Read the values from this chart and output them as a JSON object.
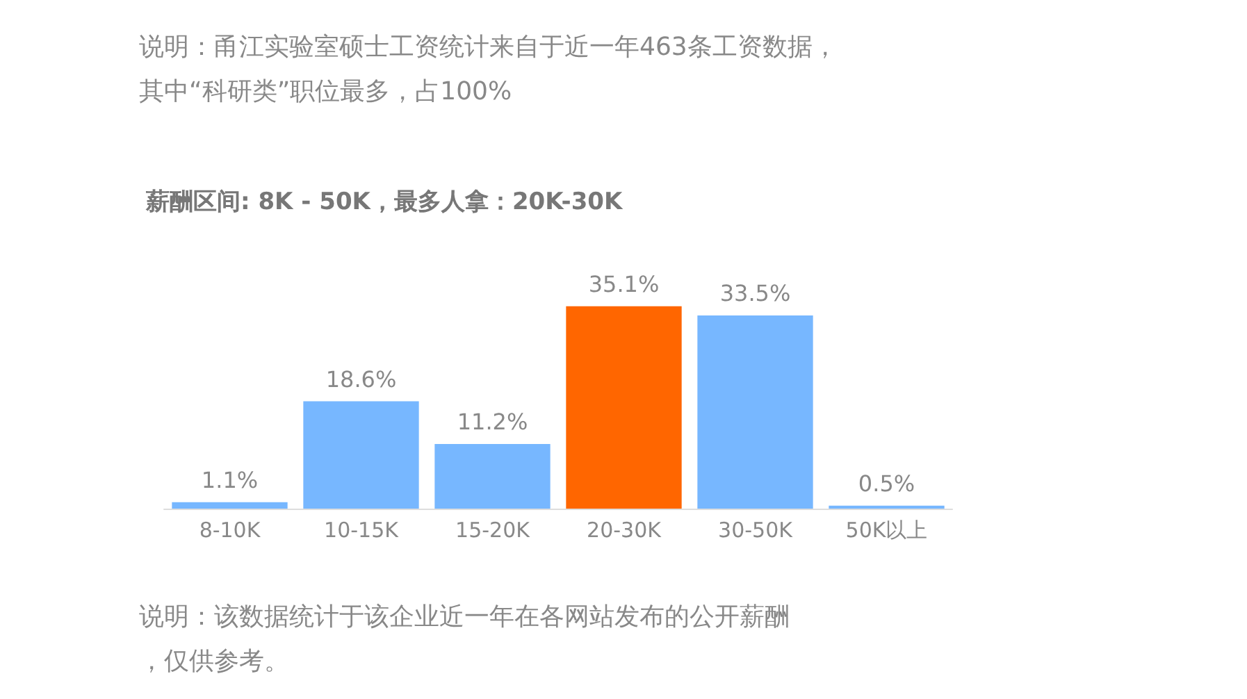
{
  "chart_data": {
    "type": "bar",
    "title": "薪酬区间: 8K - 50K，最多人拿：20K-30K",
    "annotations": [
      "说明：甬江实验室硕士工资统计来自于近一年463条工资数据，其中“科研类”职位最多，占100%",
      "说明：该数据统计于该企业近一年在各网站发布的公开薪酬，仅供参考。"
    ],
    "categories": [
      "8-10K",
      "10-15K",
      "15-20K",
      "20-30K",
      "30-50K",
      "50K以上"
    ],
    "values": [
      1.1,
      18.6,
      11.2,
      35.1,
      33.5,
      0.5
    ],
    "colors": [
      "#77b7ff",
      "#77b7ff",
      "#77b7ff",
      "#ff6600",
      "#77b7ff",
      "#77b7ff"
    ],
    "value_labels": [
      "1.1%",
      "18.6%",
      "11.2%",
      "35.1%",
      "33.5%",
      "0.5%"
    ]
  }
}
